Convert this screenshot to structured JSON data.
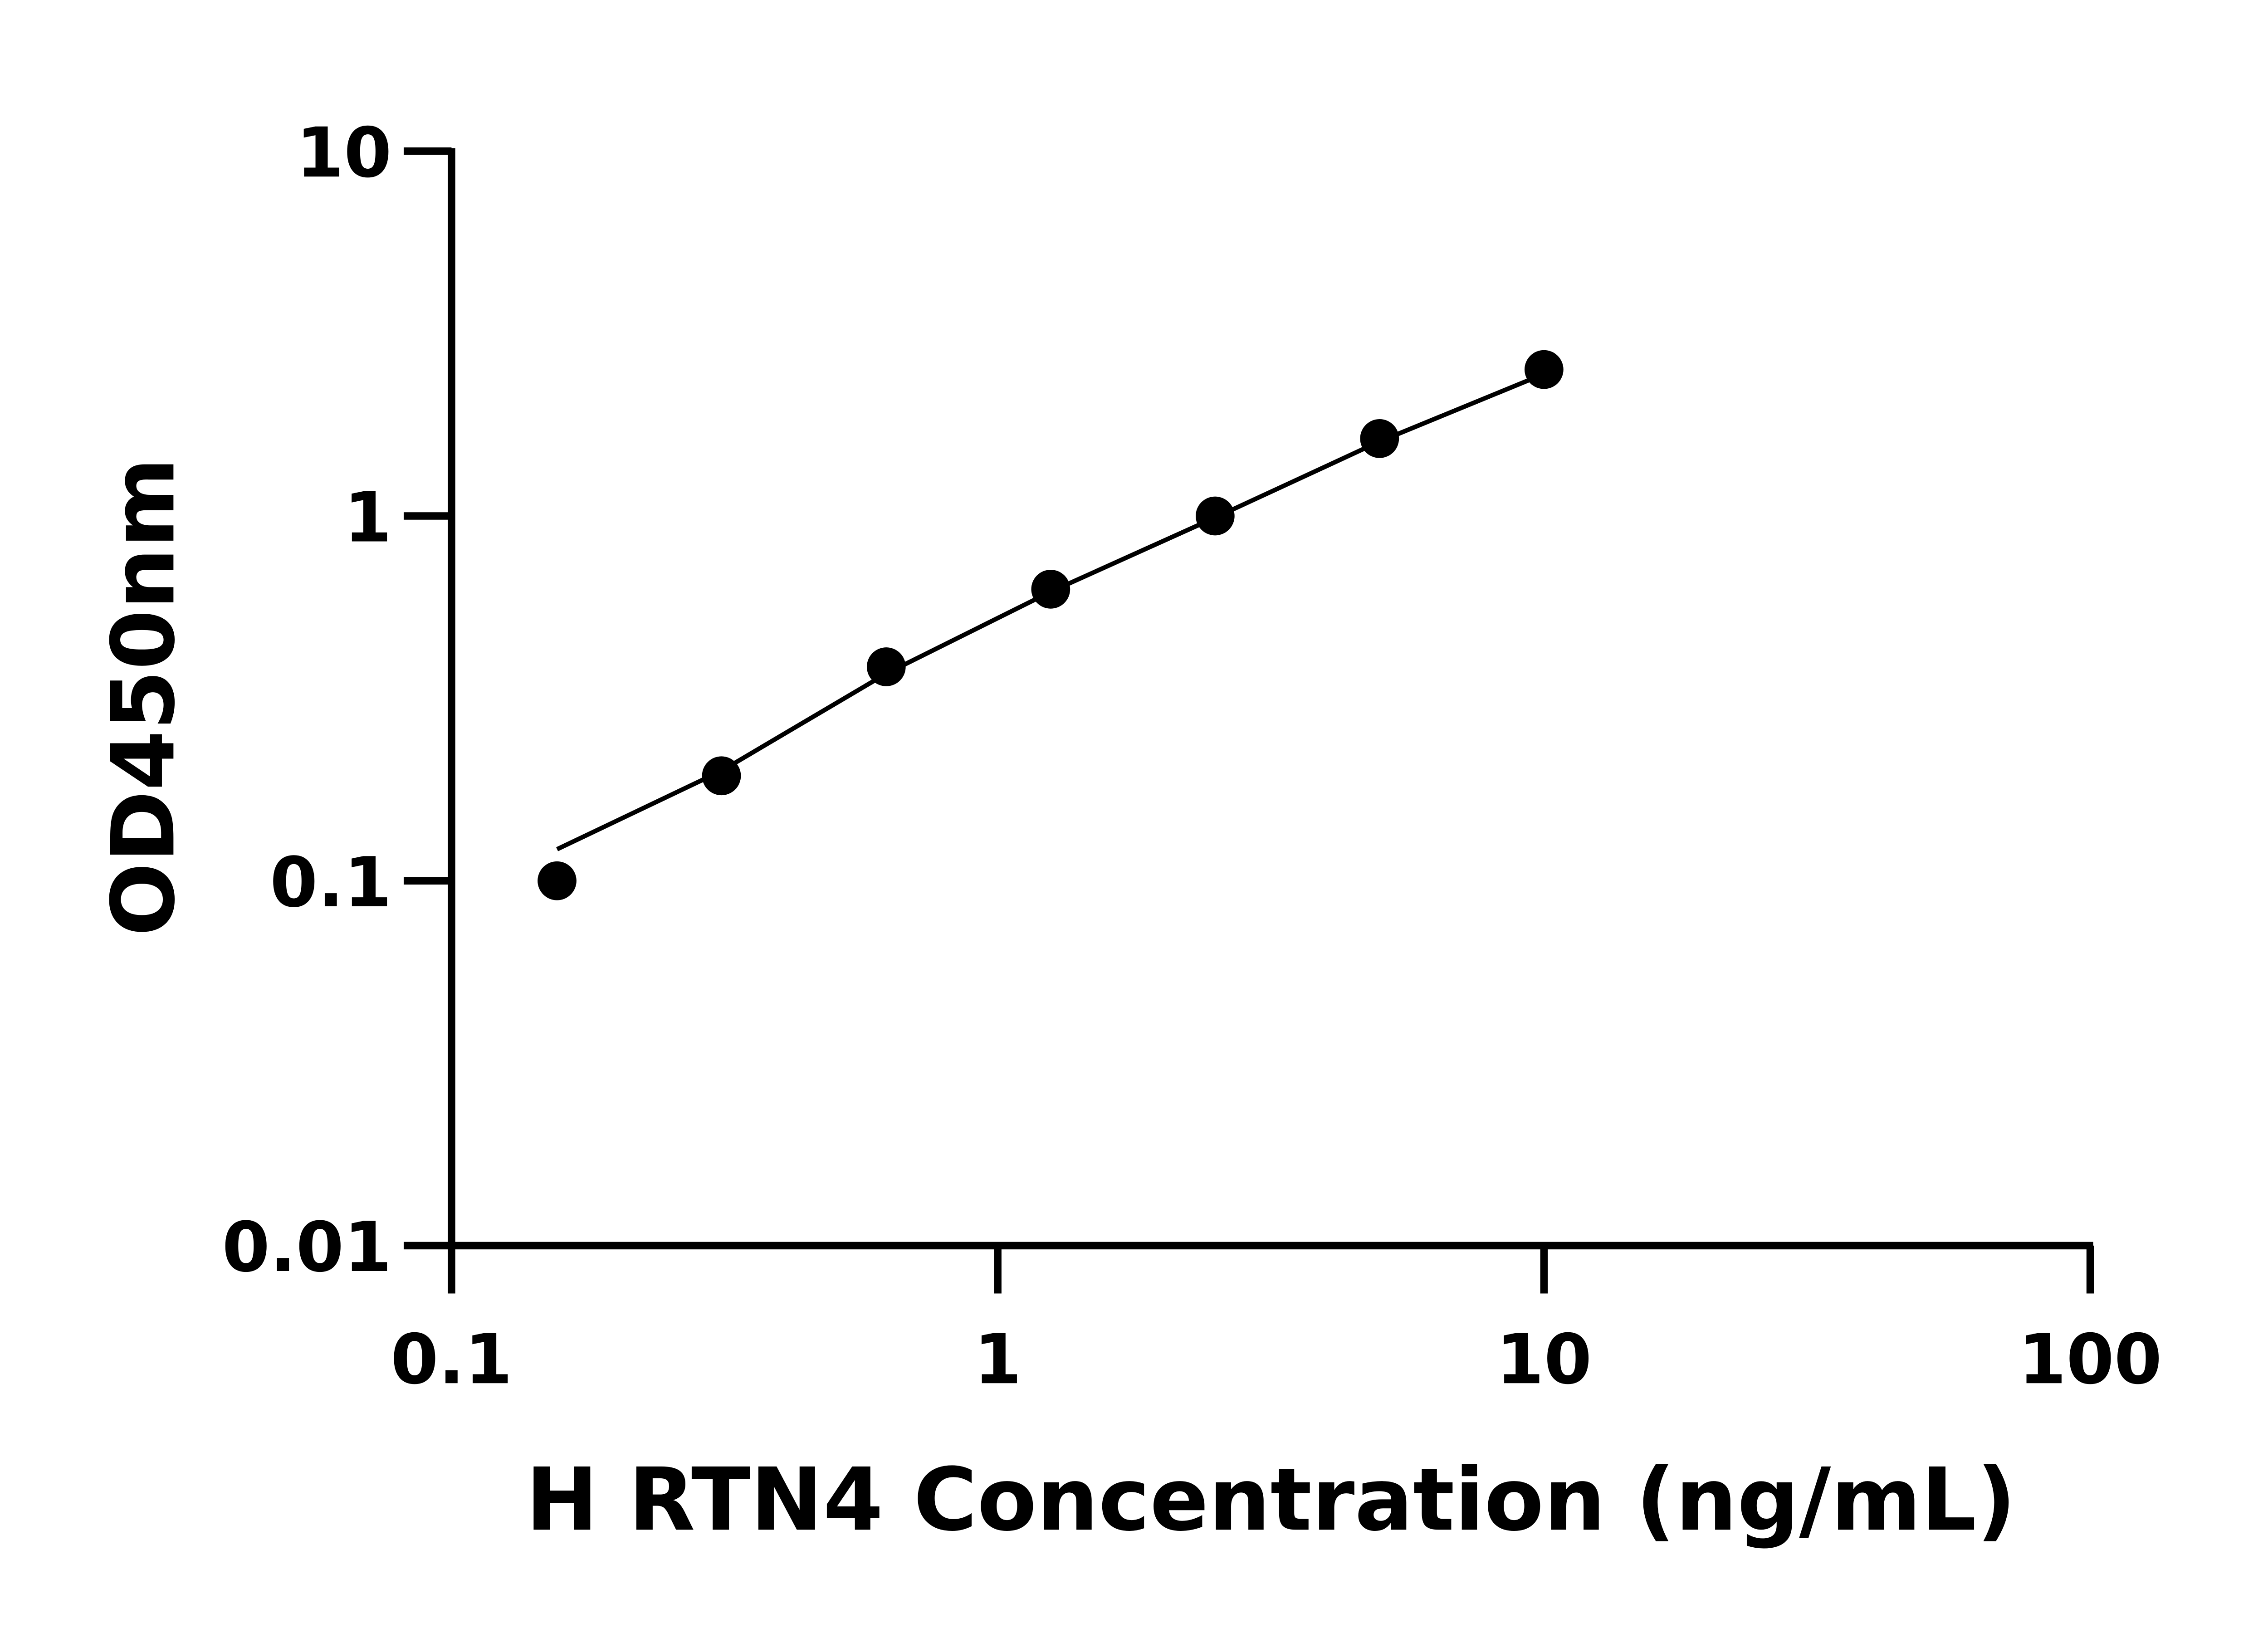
{
  "chart_data": {
    "type": "scatter",
    "title": "",
    "xlabel": "H RTN4 Concentration (ng/mL)",
    "ylabel": "OD450nm",
    "xscale": "log",
    "yscale": "log",
    "xlim": [
      0.1,
      100
    ],
    "ylim": [
      0.01,
      10
    ],
    "xticks": [
      0.1,
      1,
      10,
      100
    ],
    "xtick_labels": [
      "0.1",
      "1",
      "10",
      "100"
    ],
    "yticks": [
      0.01,
      0.1,
      1,
      10
    ],
    "ytick_labels": [
      "0.01",
      "0.1",
      "1",
      "10"
    ],
    "grid": false,
    "legend": "none",
    "marker_color": "#000000",
    "series": [
      {
        "x": [
          0.156,
          0.312,
          0.625,
          1.25,
          2.5,
          5,
          10
        ],
        "y": [
          0.1,
          0.194,
          0.386,
          0.63,
          1.0,
          1.63,
          2.52
        ]
      }
    ],
    "fit_curve": {
      "x": [
        0.156,
        0.312,
        0.625,
        1.25,
        2.5,
        5,
        10
      ],
      "y": [
        0.122,
        0.2,
        0.37,
        0.62,
        0.99,
        1.6,
        2.45
      ]
    }
  }
}
